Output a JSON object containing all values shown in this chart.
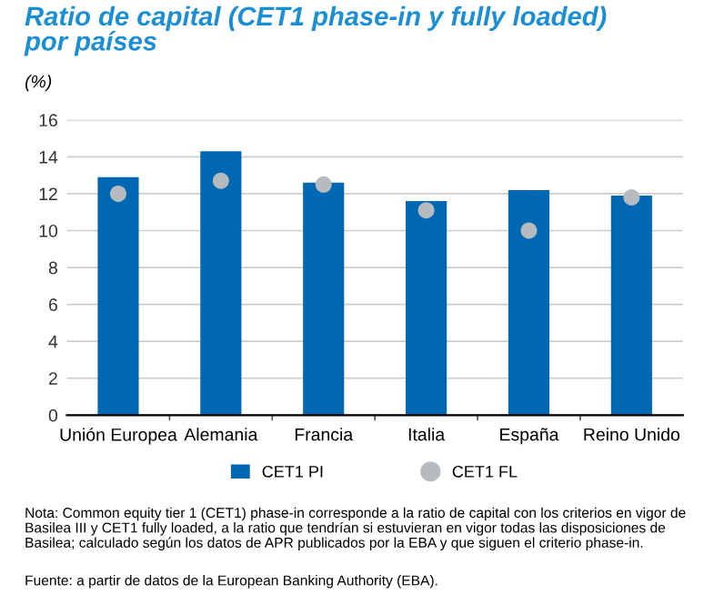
{
  "chart_data": {
    "type": "bar",
    "title": "Ratio de capital (CET1 phase-in y fully loaded)\npor países",
    "ylabel": "(%)",
    "categories": [
      "Unión Europea",
      "Alemania",
      "Francia",
      "Italia",
      "España",
      "Reino Unido"
    ],
    "series": [
      {
        "name": "CET1 PI",
        "color": "#0068b3",
        "values": [
          12.9,
          14.3,
          12.6,
          11.6,
          12.2,
          11.9
        ]
      },
      {
        "name": "CET1 FL",
        "type": "scatter",
        "color": "#b5bbbf",
        "x": [
          "Unión Europea",
          "Alemania",
          "Francia",
          "Italia",
          "España",
          "Reino Unido"
        ],
        "values": [
          12.0,
          12.7,
          12.5,
          11.1,
          10.0,
          11.8
        ]
      }
    ],
    "ylim": [
      0,
      16
    ],
    "yticks": [
      0,
      2,
      4,
      6,
      8,
      10,
      12,
      14,
      16
    ],
    "grid": "y",
    "legend": "bottom",
    "marker": "circle",
    "annotations": [
      "Nota: Common equity tier 1 (CET1) phase-in corresponde a la ratio de capital con los criterios en vigor de Basilea III y CET1 fully loaded, a la ratio que tendrían si estuvieran en vigor todas las disposiciones de Basilea; calculado según los datos de APR publicados por la EBA y que siguen el criterio phase-in.",
      "Fuente: a partir de datos de la European Banking Authority (EBA)."
    ]
  }
}
